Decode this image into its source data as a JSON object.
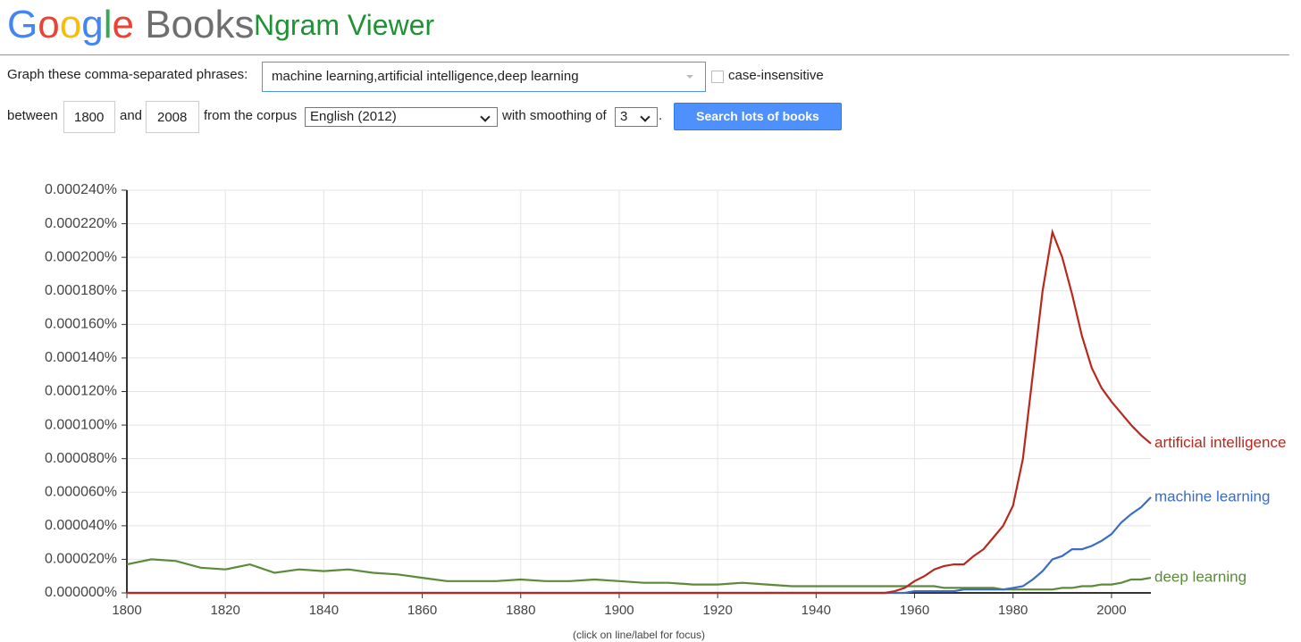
{
  "header": {
    "logo": "Google",
    "product": "Books",
    "title": "Ngram Viewer"
  },
  "form": {
    "phrases_label": "Graph these comma-separated phrases:",
    "phrases_value": "machine learning,artificial intelligence,deep learning",
    "case_label": "case-insensitive",
    "between_label": "between",
    "start_year": "1800",
    "and_label": "and",
    "end_year": "2008",
    "corpus_label": "from the corpus",
    "corpus_value": "English (2012)",
    "smoothing_label": "with smoothing of",
    "smoothing_value": "3",
    "period": ".",
    "button": "Search lots of books"
  },
  "chart_data": {
    "type": "line",
    "note": "(click on line/label for focus)",
    "x": [
      1800,
      1805,
      1810,
      1815,
      1820,
      1825,
      1830,
      1835,
      1840,
      1845,
      1850,
      1855,
      1860,
      1865,
      1870,
      1875,
      1880,
      1885,
      1890,
      1895,
      1900,
      1905,
      1910,
      1915,
      1920,
      1925,
      1930,
      1935,
      1940,
      1945,
      1950,
      1952,
      1954,
      1956,
      1958,
      1960,
      1962,
      1964,
      1966,
      1968,
      1970,
      1972,
      1974,
      1976,
      1978,
      1980,
      1982,
      1984,
      1986,
      1988,
      1990,
      1992,
      1994,
      1996,
      1998,
      2000,
      2002,
      2004,
      2006,
      2008
    ],
    "series": [
      {
        "name": "artificial intelligence",
        "color": "#b8281d",
        "values": [
          0,
          0,
          0,
          0,
          0,
          0,
          0,
          0,
          0,
          0,
          0,
          0,
          0,
          0,
          0,
          0,
          0,
          0,
          0,
          0,
          0,
          0,
          0,
          0,
          0,
          0,
          0,
          0,
          0,
          0,
          0,
          0,
          0,
          1e-06,
          3e-06,
          7e-06,
          1e-05,
          1.4e-05,
          1.6e-05,
          1.7e-05,
          1.7e-05,
          2.2e-05,
          2.6e-05,
          3.3e-05,
          4e-05,
          5.2e-05,
          8e-05,
          0.00013,
          0.00018,
          0.000215,
          0.0002,
          0.000178,
          0.000153,
          0.000134,
          0.000122,
          0.000114,
          0.000107,
          0.0001,
          9.4e-05,
          8.9e-05
        ]
      },
      {
        "name": "machine learning",
        "color": "#3a6cc8",
        "values": [
          0,
          0,
          0,
          0,
          0,
          0,
          0,
          0,
          0,
          0,
          0,
          0,
          0,
          0,
          0,
          0,
          0,
          0,
          0,
          0,
          0,
          0,
          0,
          0,
          0,
          0,
          0,
          0,
          0,
          0,
          0,
          0,
          0,
          0,
          0,
          1e-06,
          1e-06,
          1e-06,
          1e-06,
          1e-06,
          2e-06,
          2e-06,
          2e-06,
          2e-06,
          2e-06,
          3e-06,
          4e-06,
          8e-06,
          1.3e-05,
          2e-05,
          2.2e-05,
          2.6e-05,
          2.6e-05,
          2.8e-05,
          3.1e-05,
          3.5e-05,
          4.2e-05,
          4.7e-05,
          5.1e-05,
          5.7e-05
        ]
      },
      {
        "name": "deep learning",
        "color": "#5b8a3a",
        "values": [
          1.7e-05,
          2e-05,
          1.9e-05,
          1.5e-05,
          1.4e-05,
          1.7e-05,
          1.2e-05,
          1.4e-05,
          1.3e-05,
          1.4e-05,
          1.2e-05,
          1.1e-05,
          9e-06,
          7e-06,
          7e-06,
          7e-06,
          8e-06,
          7e-06,
          7e-06,
          8e-06,
          7e-06,
          6e-06,
          6e-06,
          5e-06,
          5e-06,
          6e-06,
          5e-06,
          4e-06,
          4e-06,
          4e-06,
          4e-06,
          4e-06,
          4e-06,
          4e-06,
          4e-06,
          4e-06,
          4e-06,
          4e-06,
          3e-06,
          3e-06,
          3e-06,
          3e-06,
          3e-06,
          3e-06,
          2e-06,
          2e-06,
          2e-06,
          2e-06,
          2e-06,
          2e-06,
          3e-06,
          3e-06,
          4e-06,
          4e-06,
          5e-06,
          5e-06,
          6e-06,
          8e-06,
          8e-06,
          9e-06
        ]
      }
    ],
    "xlim": [
      1800,
      2008
    ],
    "xticks": [
      1800,
      1820,
      1840,
      1860,
      1880,
      1900,
      1920,
      1940,
      1960,
      1980,
      2000
    ],
    "ylim": [
      0,
      0.00024
    ],
    "yticks": [
      {
        "value": 0,
        "label": "0.000000%"
      },
      {
        "value": 2e-05,
        "label": "0.000020%"
      },
      {
        "value": 4e-05,
        "label": "0.000040%"
      },
      {
        "value": 6e-05,
        "label": "0.000060%"
      },
      {
        "value": 8e-05,
        "label": "0.000080%"
      },
      {
        "value": 0.0001,
        "label": "0.000100%"
      },
      {
        "value": 0.00012,
        "label": "0.000120%"
      },
      {
        "value": 0.00014,
        "label": "0.000140%"
      },
      {
        "value": 0.00016,
        "label": "0.000160%"
      },
      {
        "value": 0.00018,
        "label": "0.000180%"
      },
      {
        "value": 0.0002,
        "label": "0.000200%"
      },
      {
        "value": 0.00022,
        "label": "0.000220%"
      },
      {
        "value": 0.00024,
        "label": "0.000240%"
      }
    ],
    "grid": true
  }
}
